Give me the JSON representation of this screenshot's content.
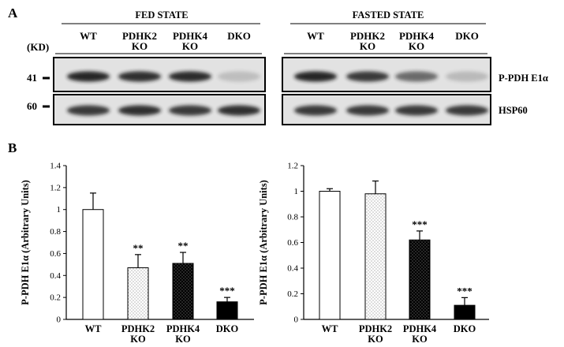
{
  "panels": {
    "a": "A",
    "b": "B"
  },
  "blot": {
    "kd_label": "(KD)",
    "groups": [
      {
        "title": "FED STATE",
        "lanes": [
          [
            "WT"
          ],
          [
            "PDHK2",
            "KO"
          ],
          [
            "PDHK4",
            "KO"
          ],
          [
            "DKO"
          ]
        ],
        "bands": {
          "pdh": [
            0.95,
            0.9,
            0.92,
            0.18
          ],
          "hsp": [
            0.85,
            0.9,
            0.85,
            0.9
          ]
        }
      },
      {
        "title": "FASTED STATE",
        "lanes": [
          [
            "WT"
          ],
          [
            "PDHK2",
            "KO"
          ],
          [
            "PDHK4",
            "KO"
          ],
          [
            "DKO"
          ]
        ],
        "bands": {
          "pdh": [
            0.95,
            0.85,
            0.6,
            0.2
          ],
          "hsp": [
            0.85,
            0.85,
            0.85,
            0.85
          ]
        }
      }
    ],
    "rows": [
      {
        "marker": "41",
        "label": "P-PDH E1α"
      },
      {
        "marker": "60",
        "label": "HSP60"
      }
    ],
    "colors": {
      "band": "#1a1a1a",
      "membrane": "#e2e2e2"
    }
  },
  "chart_data": [
    {
      "type": "bar",
      "categories": [
        [
          "WT"
        ],
        [
          "PDHK2",
          "KO"
        ],
        [
          "PDHK4",
          "KO"
        ],
        [
          "DKO"
        ]
      ],
      "values": [
        1.0,
        0.47,
        0.51,
        0.16
      ],
      "errors": [
        0.15,
        0.12,
        0.1,
        0.04
      ],
      "significance": [
        "",
        "**",
        "**",
        "***"
      ],
      "ylabel": "P-PDH E1α (Arbitrary Units)",
      "ylim": [
        0,
        1.4
      ],
      "yticks": [
        "0",
        "0.2",
        "0.4",
        "0.6",
        "0.8",
        "1",
        "1.2",
        "1.4"
      ],
      "fills": [
        "white",
        "dots",
        "black-dots",
        "black"
      ]
    },
    {
      "type": "bar",
      "categories": [
        [
          "WT"
        ],
        [
          "PDHK2",
          "KO"
        ],
        [
          "PDHK4",
          "KO"
        ],
        [
          "DKO"
        ]
      ],
      "values": [
        1.0,
        0.98,
        0.62,
        0.11
      ],
      "errors": [
        0.02,
        0.1,
        0.07,
        0.06
      ],
      "significance": [
        "",
        "",
        "***",
        "***"
      ],
      "ylabel": "P-PDH E1α (Arbitrary Units)",
      "ylim": [
        0,
        1.2
      ],
      "yticks": [
        "0",
        "0.2",
        "0.4",
        "0.6",
        "0.8",
        "1",
        "1.2"
      ],
      "fills": [
        "white",
        "dots",
        "black-dots",
        "black"
      ]
    }
  ]
}
